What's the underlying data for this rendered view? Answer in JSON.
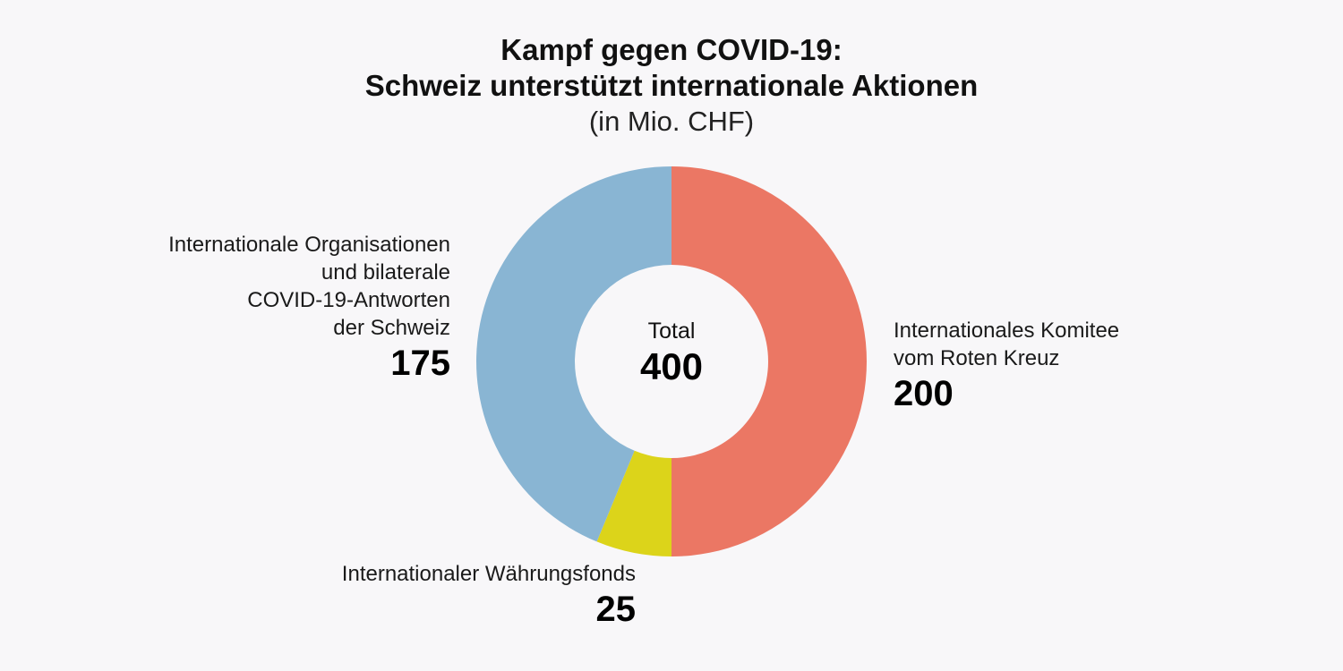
{
  "chart_data": {
    "type": "pie",
    "title": [
      "Kampf gegen COVID-19:",
      "Schweiz unterstützt internationale Aktionen"
    ],
    "subtitle": "(in Mio. CHF)",
    "center": {
      "label": "Total",
      "value": "400"
    },
    "slices": [
      {
        "label_lines": [
          "Internationales Komitee",
          "vom Roten Kreuz"
        ],
        "value": 200,
        "value_label": "200",
        "color": "#eb7764"
      },
      {
        "label_lines": [
          "Internationaler Währungsfonds"
        ],
        "value": 25,
        "value_label": "25",
        "color": "#dcd41a"
      },
      {
        "label_lines": [
          "Internationale Organisationen",
          "und bilaterale",
          "COVID-19-Antworten",
          "der Schweiz"
        ],
        "value": 175,
        "value_label": "175",
        "color": "#89b5d3"
      }
    ],
    "donut": true,
    "start_angle": "top",
    "direction": "clockwise"
  },
  "colors": {
    "background": "#f8f7f9"
  }
}
